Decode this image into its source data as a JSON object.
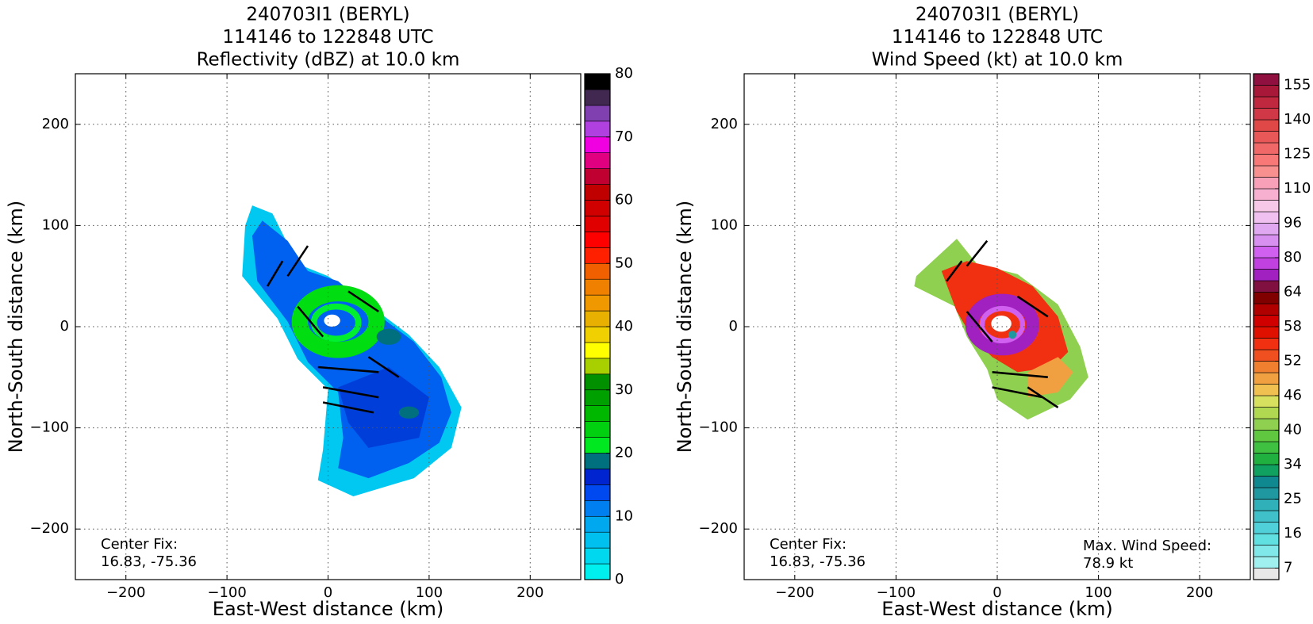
{
  "chart_data": [
    {
      "type": "heatmap",
      "title": [
        "240703I1 (BERYL)",
        "114146 to 122848 UTC",
        "Reflectivity (dBZ) at 10.0 km"
      ],
      "xlabel": "East-West distance (km)",
      "ylabel": "North-South distance (km)",
      "xlim": [
        -250,
        250
      ],
      "ylim": [
        -250,
        250
      ],
      "xticks": [
        {
          "value": -200,
          "label": "−200"
        },
        {
          "value": -100,
          "label": "−100"
        },
        0,
        100,
        200
      ],
      "yticks": [
        {
          "value": -200,
          "label": "−200"
        },
        {
          "value": -100,
          "label": "−100"
        },
        0,
        100,
        200
      ],
      "grid": true,
      "colorbar": {
        "clim": [
          0,
          80
        ],
        "ticks": [
          0,
          10,
          20,
          30,
          40,
          50,
          60,
          70,
          80
        ],
        "colors": [
          "#00f0f0",
          "#00d8f0",
          "#00c0f0",
          "#00a8f0",
          "#0080f0",
          "#0048f0",
          "#0024d0",
          "#00707f",
          "#00e820",
          "#00d010",
          "#00b800",
          "#00a000",
          "#009000",
          "#a8d000",
          "#ffff00",
          "#f0d000",
          "#e8b000",
          "#f09800",
          "#f08000",
          "#f06000",
          "#ff2000",
          "#ff0000",
          "#e00000",
          "#d00000",
          "#c00000",
          "#c00030",
          "#e00080",
          "#f000e0",
          "#b040e0",
          "#8040b0",
          "#402850",
          "#000000"
        ]
      },
      "annotations": [
        {
          "loc": "lower left",
          "lines": [
            "Center Fix:",
            "16.83, -75.36"
          ]
        }
      ]
    },
    {
      "type": "heatmap",
      "title": [
        "240703I1 (BERYL)",
        "114146 to 122848 UTC",
        "Wind Speed (kt) at 10.0 km"
      ],
      "xlabel": "East-West distance (km)",
      "ylabel": "North-South distance (km)",
      "xlim": [
        -250,
        250
      ],
      "ylim": [
        -250,
        250
      ],
      "xticks": [
        {
          "value": -200,
          "label": "−200"
        },
        {
          "value": -100,
          "label": "−100"
        },
        0,
        100,
        200
      ],
      "yticks": [
        {
          "value": -200,
          "label": "−200"
        },
        {
          "value": -100,
          "label": "−100"
        },
        0,
        100,
        200
      ],
      "grid": true,
      "colorbar": {
        "levels": [
          4,
          7,
          10,
          13,
          16,
          19,
          22,
          25,
          28,
          31,
          34,
          36,
          38,
          40,
          42,
          44,
          46,
          48,
          50,
          52,
          54,
          56,
          58,
          60,
          62,
          64,
          69.3,
          74.7,
          80,
          85.3,
          90.7,
          96,
          100.7,
          105.3,
          110,
          115,
          120,
          125,
          130,
          135,
          140,
          145,
          150,
          155,
          160
        ],
        "ticks": [
          7,
          16,
          25,
          34,
          40,
          46,
          52,
          58,
          64,
          80,
          96,
          110,
          125,
          140,
          155
        ],
        "colors": [
          "#e8e8e8",
          "#a0f0f0",
          "#80e8e8",
          "#60e0e0",
          "#50d0d8",
          "#40c0c8",
          "#30b0b8",
          "#2098a0",
          "#108890",
          "#10a060",
          "#20b040",
          "#40c040",
          "#60c840",
          "#90d050",
          "#b0d850",
          "#d8e060",
          "#f0c050",
          "#f0a040",
          "#f08030",
          "#f05020",
          "#f03010",
          "#e01000",
          "#d00000",
          "#b00000",
          "#800000",
          "#801040",
          "#a020c0",
          "#c040e0",
          "#d060f0",
          "#d890f0",
          "#e0a8f0",
          "#f0c0f0",
          "#f8c8e8",
          "#f8b0d0",
          "#f8a0b8",
          "#f89090",
          "#f87878",
          "#f06868",
          "#e85858",
          "#e04848",
          "#d03848",
          "#c02840",
          "#a81838",
          "#901040"
        ]
      },
      "annotations": [
        {
          "loc": "lower left",
          "lines": [
            "Center Fix:",
            "16.83, -75.36"
          ]
        },
        {
          "loc": "lower right",
          "lines": [
            "Max. Wind Speed:",
            "78.9 kt"
          ]
        }
      ]
    }
  ]
}
